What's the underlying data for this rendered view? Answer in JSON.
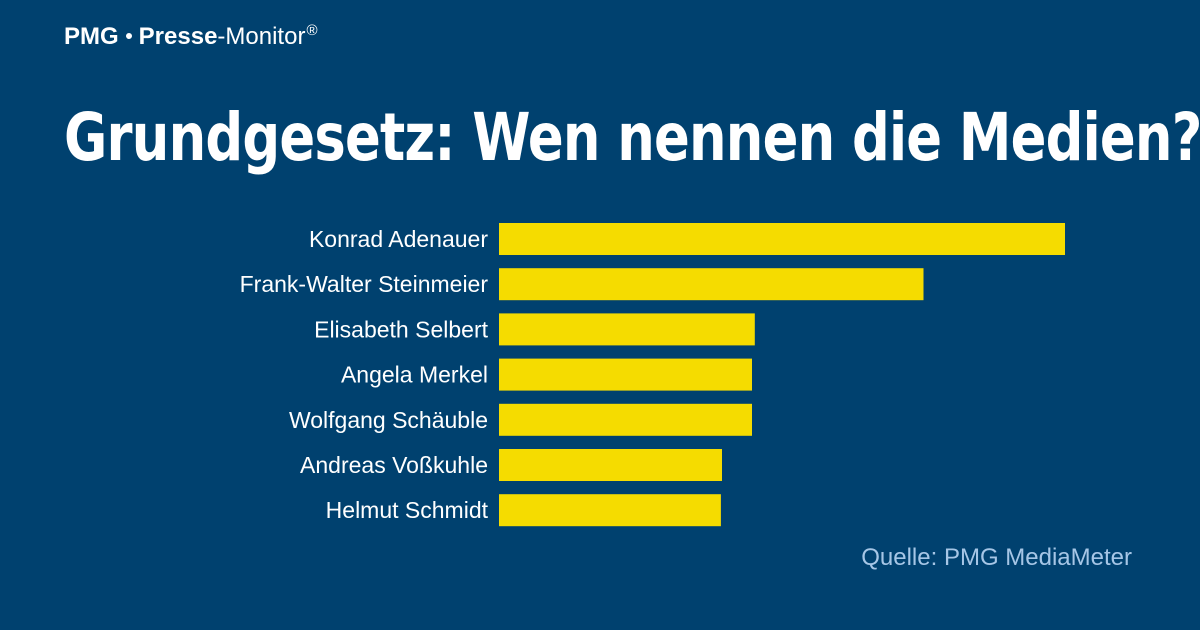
{
  "header": {
    "logo_part1": "PMG",
    "logo_part2": "Presse",
    "logo_part3": "-Monitor",
    "logo_registered": "®"
  },
  "colors": {
    "background": "#00416f",
    "bar": "#f5dc00",
    "text": "#ffffff",
    "source": "#a6c6e6"
  },
  "chart_data": {
    "type": "bar",
    "orientation": "horizontal",
    "title": "Grundgesetz: Wen nennen die Medien?",
    "categories": [
      "Konrad Adenauer",
      "Frank-Walter Steinmeier",
      "Elisabeth Selbert",
      "Angela Merkel",
      "Wolfgang Schäuble",
      "Andreas Voßkuhle",
      "Helmut Schmidt"
    ],
    "values": [
      100,
      75,
      45.2,
      44.7,
      44.7,
      39.4,
      39.2
    ],
    "xlim": [
      0,
      100
    ],
    "grid": false,
    "legend": "none",
    "source": "Quelle: PMG MediaMeter"
  }
}
